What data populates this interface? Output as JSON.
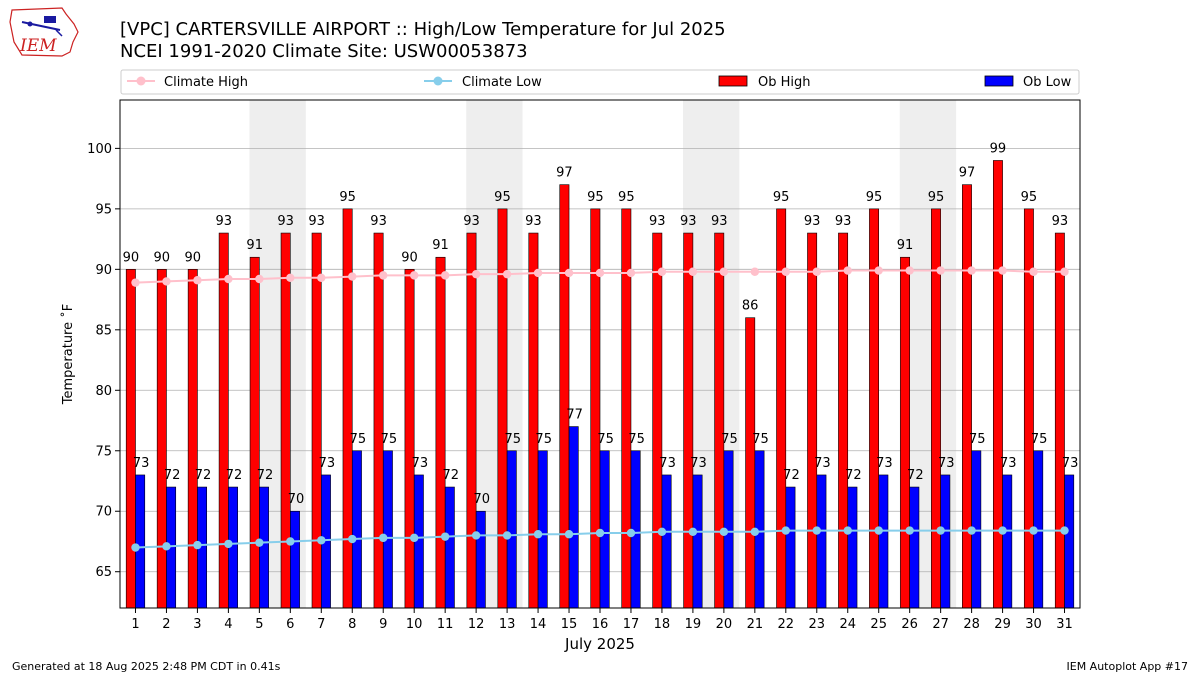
{
  "title": "[VPC] CARTERSVILLE AIRPORT :: High/Low Temperature for Jul 2025",
  "subtitle": "NCEI 1991-2020 Climate Site: USW00053873",
  "logo_text": "IEM",
  "footer_left": "Generated at 18 Aug 2025 2:48 PM CDT in 0.41s",
  "footer_right": "IEM Autoplot App #17",
  "colors": {
    "ob_high": "#ff0000",
    "ob_low": "#0000ff",
    "climate_high": "#ffc0cb",
    "climate_low": "#87ceeb",
    "weekend_shade": "#eeeeee",
    "grid": "#b0b0b0"
  },
  "chart_data": {
    "type": "bar",
    "xlabel": "July 2025",
    "ylabel": "Temperature ˚F",
    "ylim": [
      62,
      104
    ],
    "yticks": [
      65,
      70,
      75,
      80,
      85,
      90,
      95,
      100
    ],
    "grid": "horizontal",
    "legend_position": "top",
    "categories": [
      "1",
      "2",
      "3",
      "4",
      "5",
      "6",
      "7",
      "8",
      "9",
      "10",
      "11",
      "12",
      "13",
      "14",
      "15",
      "16",
      "17",
      "18",
      "19",
      "20",
      "21",
      "22",
      "23",
      "24",
      "25",
      "26",
      "27",
      "28",
      "29",
      "30",
      "31"
    ],
    "weekend_bands": [
      [
        5,
        6
      ],
      [
        12,
        13
      ],
      [
        19,
        20
      ],
      [
        26,
        27
      ]
    ],
    "series": [
      {
        "name": "Climate High",
        "kind": "line",
        "values": [
          88.9,
          89.0,
          89.1,
          89.2,
          89.2,
          89.3,
          89.3,
          89.4,
          89.5,
          89.5,
          89.5,
          89.6,
          89.6,
          89.7,
          89.7,
          89.7,
          89.7,
          89.8,
          89.8,
          89.8,
          89.8,
          89.8,
          89.8,
          89.9,
          89.9,
          89.9,
          89.9,
          89.9,
          89.9,
          89.8,
          89.8
        ]
      },
      {
        "name": "Climate Low",
        "kind": "line",
        "values": [
          67.0,
          67.1,
          67.2,
          67.3,
          67.4,
          67.5,
          67.6,
          67.7,
          67.8,
          67.8,
          67.9,
          68.0,
          68.0,
          68.1,
          68.1,
          68.2,
          68.2,
          68.3,
          68.3,
          68.3,
          68.3,
          68.4,
          68.4,
          68.4,
          68.4,
          68.4,
          68.4,
          68.4,
          68.4,
          68.4,
          68.4
        ]
      },
      {
        "name": "Ob High",
        "kind": "bar",
        "values": [
          90,
          90,
          90,
          93,
          91,
          93,
          93,
          95,
          93,
          90,
          91,
          93,
          95,
          93,
          97,
          95,
          95,
          93,
          93,
          93,
          86,
          95,
          93,
          93,
          95,
          91,
          95,
          97,
          99,
          95,
          93
        ]
      },
      {
        "name": "Ob Low",
        "kind": "bar",
        "values": [
          73,
          72,
          72,
          72,
          72,
          70,
          73,
          75,
          75,
          73,
          72,
          70,
          75,
          75,
          77,
          75,
          75,
          73,
          73,
          75,
          75,
          72,
          73,
          72,
          73,
          72,
          73,
          75,
          73,
          75,
          73
        ]
      }
    ]
  }
}
